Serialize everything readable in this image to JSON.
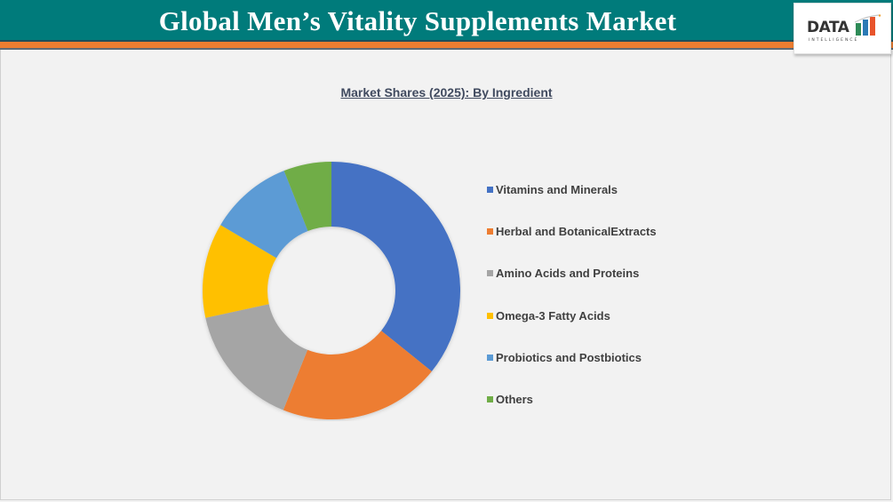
{
  "header": {
    "title": "Global Men’s Vitality Supplements Market",
    "logo_text": "DATA",
    "logo_subtext": "INTELLIGENCE",
    "colors": {
      "teal": "#007b7b",
      "orange": "#ed7d31"
    }
  },
  "chart_data": {
    "type": "pie",
    "variant": "donut",
    "title": "Market Shares (2025): By Ingredient",
    "categories": [
      "Vitamins and Minerals",
      "Herbal and BotanicalExtracts",
      "Amino Acids and Proteins",
      "Omega-3 Fatty Acids",
      "Probiotics and Postbiotics",
      "Others"
    ],
    "values": [
      35.8,
      20.3,
      15.5,
      11.9,
      10.5,
      6.0
    ],
    "colors": [
      "#4472c4",
      "#ed7d31",
      "#a5a5a5",
      "#ffc000",
      "#5b9bd5",
      "#70ad47"
    ],
    "legend_position": "right",
    "data_labels": false,
    "units": "% (estimated from slice angles)"
  }
}
